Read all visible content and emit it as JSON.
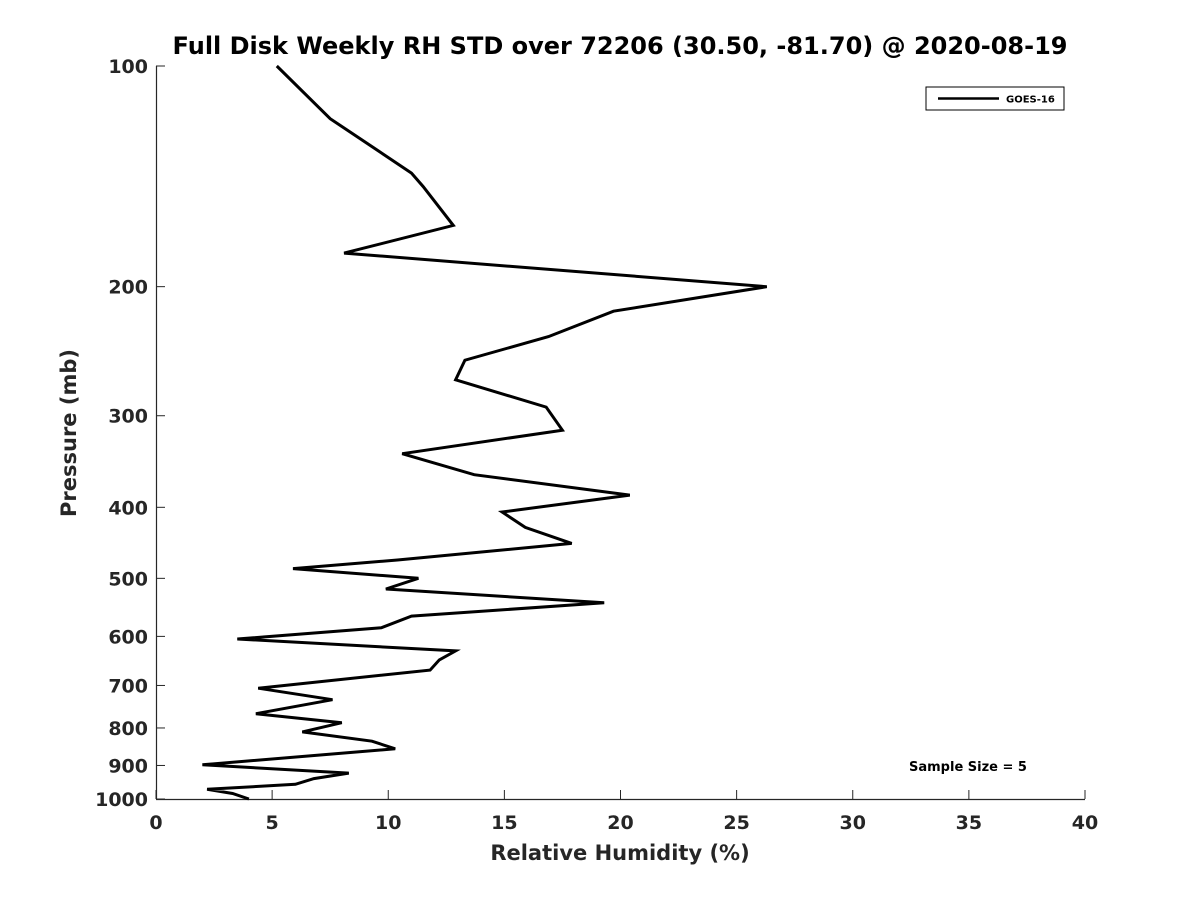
{
  "chart_data": {
    "type": "line",
    "title": "Full Disk Weekly RH STD over 72206 (30.50, -81.70) @ 2020-08-19",
    "xlabel": "Relative Humidity (%)",
    "ylabel": "Pressure (mb)",
    "xlim": [
      0,
      40
    ],
    "ylim": [
      1000,
      100
    ],
    "yscale": "log",
    "x_ticks": [
      0,
      5,
      10,
      15,
      20,
      25,
      30,
      35,
      40
    ],
    "y_ticks": [
      100,
      200,
      300,
      400,
      500,
      600,
      700,
      800,
      900,
      1000
    ],
    "grid": false,
    "legend": {
      "position": "top-right",
      "entries": [
        "GOES-16"
      ]
    },
    "annotation": "Sample Size = 5",
    "series": [
      {
        "name": "GOES-16",
        "color": "#000000",
        "points": [
          [
            5.2,
            100
          ],
          [
            7.5,
            118
          ],
          [
            11.0,
            140
          ],
          [
            11.5,
            146
          ],
          [
            12.8,
            165
          ],
          [
            8.1,
            180
          ],
          [
            26.3,
            200
          ],
          [
            19.7,
            216
          ],
          [
            16.9,
            234
          ],
          [
            13.3,
            252
          ],
          [
            12.9,
            268
          ],
          [
            16.8,
            292
          ],
          [
            17.5,
            314
          ],
          [
            10.6,
            338
          ],
          [
            13.7,
            361
          ],
          [
            20.4,
            385
          ],
          [
            14.9,
            406
          ],
          [
            15.9,
            426
          ],
          [
            17.9,
            448
          ],
          [
            10.4,
            472
          ],
          [
            5.9,
            485
          ],
          [
            11.3,
            500
          ],
          [
            9.9,
            517
          ],
          [
            19.3,
            540
          ],
          [
            11.0,
            563
          ],
          [
            9.7,
            584
          ],
          [
            3.5,
            605
          ],
          [
            12.9,
            628
          ],
          [
            12.2,
            646
          ],
          [
            11.8,
            667
          ],
          [
            4.4,
            706
          ],
          [
            7.6,
            732
          ],
          [
            4.3,
            765
          ],
          [
            8.0,
            787
          ],
          [
            6.3,
            810
          ],
          [
            9.3,
            834
          ],
          [
            10.3,
            854
          ],
          [
            7.2,
            870
          ],
          [
            2.0,
            898
          ],
          [
            8.3,
            922
          ],
          [
            6.8,
            938
          ],
          [
            6.0,
            955
          ],
          [
            2.2,
            970
          ],
          [
            3.3,
            983
          ],
          [
            4.0,
            1000
          ]
        ]
      }
    ]
  }
}
